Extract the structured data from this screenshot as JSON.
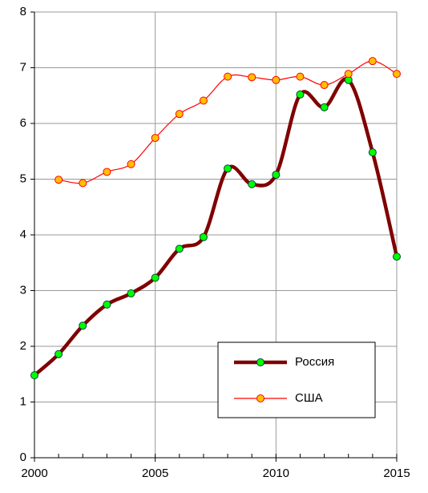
{
  "chart_data": {
    "type": "line",
    "x": [
      2000,
      2001,
      2002,
      2003,
      2004,
      2005,
      2006,
      2007,
      2008,
      2009,
      2010,
      2011,
      2012,
      2013,
      2014,
      2015
    ],
    "series": [
      {
        "name": "Россия",
        "color": "#800000",
        "marker_color": "#00ff00",
        "values": [
          1.48,
          1.86,
          2.37,
          2.75,
          2.95,
          3.23,
          3.75,
          3.96,
          5.19,
          4.91,
          5.08,
          6.52,
          6.29,
          6.78,
          5.48,
          3.61
        ]
      },
      {
        "name": "США",
        "color": "#ff0000",
        "marker_color": "#ffc000",
        "values": [
          null,
          4.99,
          4.93,
          5.13,
          5.27,
          5.74,
          6.17,
          6.41,
          6.84,
          6.83,
          6.78,
          6.84,
          6.69,
          6.89,
          7.12,
          6.89
        ]
      }
    ],
    "xlim": [
      2000,
      2015
    ],
    "xticks": [
      2000,
      2005,
      2010,
      2015
    ],
    "ylim": [
      0,
      8
    ],
    "yticks": [
      0,
      1,
      2,
      3,
      4,
      5,
      6,
      7,
      8
    ],
    "grid": true,
    "legend": "lower right"
  }
}
